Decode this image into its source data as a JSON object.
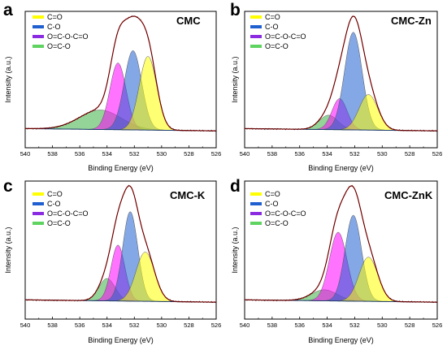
{
  "chart_data": [
    {
      "type": "area",
      "panel_label": "a",
      "title": "CMC",
      "xlabel": "Binding Energy (eV)",
      "ylabel": "Intensity (a.u.)",
      "xlim": [
        540,
        526
      ],
      "x_reversed": true,
      "x_ticks": [
        "540",
        "538",
        "536",
        "534",
        "532",
        "530",
        "528",
        "526"
      ],
      "legend_position": "top-left",
      "series": [
        {
          "name": "C=O",
          "color": "#ffff00",
          "center": 531.0,
          "height": 0.53,
          "fwhm": 1.5
        },
        {
          "name": "C-O",
          "color": "#1f5fcf",
          "center": 532.1,
          "height": 0.57,
          "fwhm": 1.5
        },
        {
          "name": "O=C-O-C=O",
          "color": "#ff00ff",
          "center": 533.2,
          "height": 0.48,
          "fwhm": 1.4
        },
        {
          "name": "O=C-O",
          "color": "#3cb043",
          "center": 534.5,
          "height": 0.14,
          "fwhm": 3.6
        }
      ],
      "envelope_peak": {
        "x": 532.1,
        "y": 1.0
      }
    },
    {
      "type": "area",
      "panel_label": "b",
      "title": "CMC-Zn",
      "xlabel": "Binding Energy (eV)",
      "ylabel": "Intensity (a.u.)",
      "xlim": [
        540,
        526
      ],
      "x_reversed": true,
      "x_ticks": [
        "540",
        "538",
        "536",
        "534",
        "532",
        "530",
        "528",
        "526"
      ],
      "legend_position": "top-left",
      "series": [
        {
          "name": "C=O",
          "color": "#ffff00",
          "center": 531.0,
          "height": 0.32,
          "fwhm": 1.6
        },
        {
          "name": "C-O",
          "color": "#1f5fcf",
          "center": 532.1,
          "height": 0.88,
          "fwhm": 1.5
        },
        {
          "name": "O=C-O-C=O",
          "color": "#ff00ff",
          "center": 533.1,
          "height": 0.28,
          "fwhm": 1.3
        },
        {
          "name": "O=C-O",
          "color": "#3cb043",
          "center": 533.9,
          "height": 0.13,
          "fwhm": 1.6
        }
      ],
      "envelope_peak": {
        "x": 532.1,
        "y": 1.0
      }
    },
    {
      "type": "area",
      "panel_label": "c",
      "title": "CMC-K",
      "xlabel": "Binding Energy (eV)",
      "ylabel": "Intensity (a.u.)",
      "xlim": [
        540,
        526
      ],
      "x_reversed": true,
      "x_ticks": [
        "540",
        "538",
        "536",
        "534",
        "532",
        "530",
        "528",
        "526"
      ],
      "legend_position": "top-left",
      "series": [
        {
          "name": "C=O",
          "color": "#ffff00",
          "center": 531.2,
          "height": 0.44,
          "fwhm": 1.6
        },
        {
          "name": "C-O",
          "color": "#1f5fcf",
          "center": 532.3,
          "height": 0.8,
          "fwhm": 1.3
        },
        {
          "name": "O=C-O-C=O",
          "color": "#ff00ff",
          "center": 533.2,
          "height": 0.5,
          "fwhm": 1.2
        },
        {
          "name": "O=C-O",
          "color": "#3cb043",
          "center": 534.0,
          "height": 0.2,
          "fwhm": 1.4
        }
      ],
      "envelope_peak": {
        "x": 532.5,
        "y": 1.0
      }
    },
    {
      "type": "area",
      "panel_label": "d",
      "title": "CMC-ZnK",
      "xlabel": "Binding Energy (eV)",
      "ylabel": "Intensity (a.u.)",
      "xlim": [
        540,
        526
      ],
      "x_reversed": true,
      "x_ticks": [
        "540",
        "538",
        "536",
        "534",
        "532",
        "530",
        "528",
        "526"
      ],
      "legend_position": "top-left",
      "series": [
        {
          "name": "C=O",
          "color": "#ffff00",
          "center": 531.0,
          "height": 0.36,
          "fwhm": 1.6
        },
        {
          "name": "C-O",
          "color": "#1f5fcf",
          "center": 532.1,
          "height": 0.7,
          "fwhm": 1.4
        },
        {
          "name": "O=C-O-C=O",
          "color": "#ff00ff",
          "center": 533.2,
          "height": 0.56,
          "fwhm": 1.5
        },
        {
          "name": "O=C-O",
          "color": "#3cb043",
          "center": 534.2,
          "height": 0.09,
          "fwhm": 2.2
        }
      ],
      "envelope_peak": {
        "x": 532.3,
        "y": 1.0
      }
    }
  ]
}
